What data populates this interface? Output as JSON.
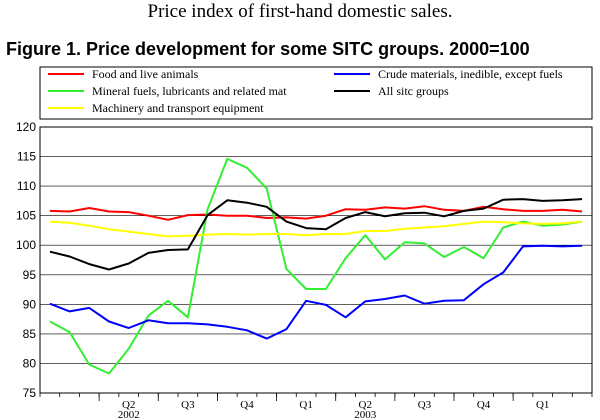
{
  "header": {
    "subtitle": "Price index of first-hand domestic sales.",
    "title": "Figure 1. Price development for some SITC groups. 2000=100"
  },
  "chart_data": {
    "type": "line",
    "title": "Figure 1. Price development for some SITC groups. 2000=100",
    "xlabel": "",
    "ylabel": "",
    "ylim": [
      75,
      120
    ],
    "yticks": [
      75,
      80,
      85,
      90,
      95,
      100,
      105,
      110,
      115,
      120
    ],
    "grid": true,
    "legend_position": "top",
    "months": [
      "2002-01",
      "2002-02",
      "2002-03",
      "2002-04",
      "2002-05",
      "2002-06",
      "2002-07",
      "2002-08",
      "2002-09",
      "2002-10",
      "2002-11",
      "2002-12",
      "2003-01",
      "2003-02",
      "2003-03",
      "2003-04",
      "2003-05",
      "2003-06",
      "2003-07",
      "2003-08",
      "2003-09",
      "2003-10",
      "2003-11",
      "2003-12",
      "2004-01",
      "2004-02",
      "2004-03",
      "2004-04"
    ],
    "quarter_labels": [
      {
        "label": "Q2",
        "start": 3
      },
      {
        "label": "Q3",
        "start": 6
      },
      {
        "label": "Q4",
        "start": 9
      },
      {
        "label": "Q1",
        "start": 12
      },
      {
        "label": "Q2",
        "start": 15
      },
      {
        "label": "Q3",
        "start": 18
      },
      {
        "label": "Q4",
        "start": 21
      },
      {
        "label": "Q1",
        "start": 24
      }
    ],
    "year_labels": [
      {
        "label": "2002",
        "start": 3
      },
      {
        "label": "2003",
        "start": 15
      }
    ],
    "series": [
      {
        "name": "Food and live animals",
        "color": "#ff0000",
        "values": [
          105.8,
          105.7,
          106.3,
          105.7,
          105.6,
          105.0,
          104.3,
          105.1,
          105.2,
          105.0,
          105.0,
          104.6,
          104.7,
          104.5,
          105.0,
          106.1,
          106.0,
          106.4,
          106.2,
          106.6,
          106.0,
          105.8,
          106.5,
          106.1,
          105.8,
          105.8,
          106.0,
          105.7
        ]
      },
      {
        "name": "Mineral fuels, lubricants and related mat",
        "color": "#33ee33",
        "values": [
          87.1,
          85.3,
          79.8,
          78.3,
          82.5,
          88.1,
          90.6,
          87.8,
          106.1,
          114.6,
          113.1,
          109.6,
          96.0,
          92.6,
          92.6,
          97.8,
          101.7,
          97.6,
          100.5,
          100.3,
          98.0,
          99.7,
          97.8,
          103.0,
          104.0,
          103.3,
          103.5,
          104.0
        ]
      },
      {
        "name": "Machinery and transport equipment",
        "color": "#ffff00",
        "values": [
          104.0,
          103.8,
          103.3,
          102.7,
          102.3,
          101.9,
          101.5,
          101.6,
          101.8,
          101.9,
          101.8,
          101.9,
          101.9,
          101.7,
          101.9,
          101.9,
          102.4,
          102.4,
          102.8,
          103.0,
          103.2,
          103.6,
          104.0,
          103.9,
          103.7,
          103.6,
          103.7,
          104.0
        ]
      },
      {
        "name": "Crude materials, inedible, except fuels",
        "color": "#0000ff",
        "values": [
          90.1,
          88.8,
          89.4,
          87.1,
          86.0,
          87.3,
          86.8,
          86.8,
          86.6,
          86.2,
          85.6,
          84.2,
          85.8,
          90.6,
          89.9,
          87.8,
          90.5,
          90.9,
          91.5,
          90.1,
          90.6,
          90.7,
          93.4,
          95.4,
          99.8,
          99.9,
          99.8,
          99.9
        ]
      },
      {
        "name": "All sitc groups",
        "color": "#000000",
        "values": [
          98.9,
          98.1,
          96.8,
          95.9,
          96.9,
          98.7,
          99.2,
          99.3,
          105.1,
          107.6,
          107.2,
          106.5,
          104.0,
          102.9,
          102.7,
          104.6,
          105.6,
          104.9,
          105.4,
          105.5,
          104.9,
          105.8,
          106.2,
          107.7,
          107.8,
          107.5,
          107.6,
          107.8
        ]
      }
    ]
  }
}
